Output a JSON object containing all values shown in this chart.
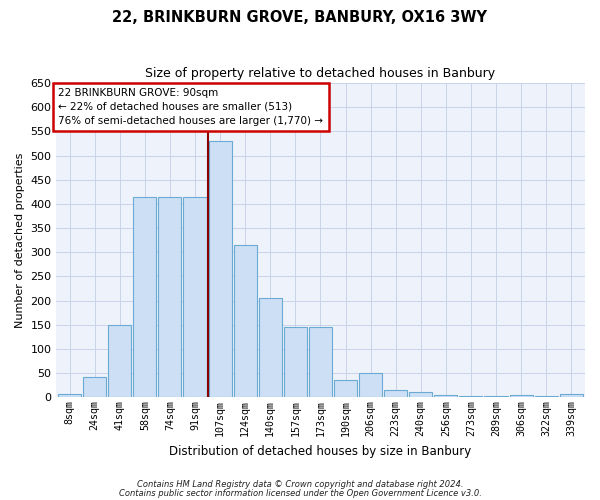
{
  "title": "22, BRINKBURN GROVE, BANBURY, OX16 3WY",
  "subtitle": "Size of property relative to detached houses in Banbury",
  "xlabel": "Distribution of detached houses by size in Banbury",
  "ylabel": "Number of detached properties",
  "categories": [
    "8sqm",
    "24sqm",
    "41sqm",
    "58sqm",
    "74sqm",
    "91sqm",
    "107sqm",
    "124sqm",
    "140sqm",
    "157sqm",
    "173sqm",
    "190sqm",
    "206sqm",
    "223sqm",
    "240sqm",
    "256sqm",
    "273sqm",
    "289sqm",
    "306sqm",
    "322sqm",
    "339sqm"
  ],
  "values": [
    7,
    43,
    150,
    415,
    415,
    415,
    530,
    315,
    205,
    145,
    145,
    35,
    50,
    15,
    12,
    5,
    3,
    3,
    5,
    2,
    7
  ],
  "bar_color": "#ccdff5",
  "bar_edge_color": "#6aaad4",
  "annotation_lines": [
    "22 BRINKBURN GROVE: 90sqm",
    "← 22% of detached houses are smaller (513)",
    "76% of semi-detached houses are larger (1,770) →"
  ],
  "annotation_box_color": "#cc0000",
  "property_line_index": 5.5,
  "ylim": [
    0,
    650
  ],
  "yticks": [
    0,
    50,
    100,
    150,
    200,
    250,
    300,
    350,
    400,
    450,
    500,
    550,
    600,
    650
  ],
  "grid_color": "#c8d4e8",
  "footnote1": "Contains HM Land Registry data © Crown copyright and database right 2024.",
  "footnote2": "Contains public sector information licensed under the Open Government Licence v3.0.",
  "bg_color": "#eef2fa",
  "fig_width": 6.0,
  "fig_height": 5.0,
  "dpi": 100
}
